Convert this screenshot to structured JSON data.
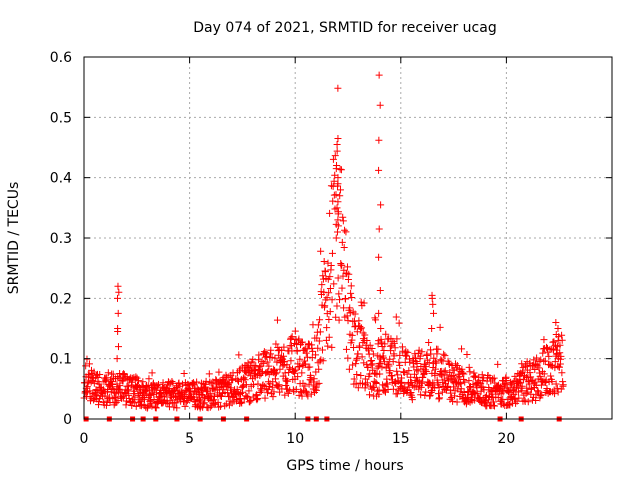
{
  "chart_data": {
    "type": "scatter",
    "title": "Day 074 of 2021, SRMTID for receiver ucag",
    "xlabel": "GPS time / hours",
    "ylabel": "SRMTID / TECUs",
    "xlim": [
      0,
      25
    ],
    "ylim": [
      0,
      0.6
    ],
    "x_ticks": [
      0,
      5,
      10,
      15,
      20
    ],
    "x_tick_labels": [
      "0",
      "5",
      "10",
      "15",
      "20"
    ],
    "y_ticks": [
      0,
      0.1,
      0.2,
      0.3,
      0.4,
      0.5,
      0.6
    ],
    "y_tick_labels": [
      "0",
      "0.1",
      "0.2",
      "0.3",
      "0.4",
      "0.5",
      "0.6"
    ],
    "grid": true,
    "marker": "plus",
    "color": "#ff0000",
    "series": [
      {
        "name": "SRMTID",
        "profile": [
          {
            "x": 0.0,
            "y": 0.07
          },
          {
            "x": 0.5,
            "y": 0.05
          },
          {
            "x": 1.0,
            "y": 0.05
          },
          {
            "x": 2.0,
            "y": 0.05
          },
          {
            "x": 3.0,
            "y": 0.04
          },
          {
            "x": 4.0,
            "y": 0.04
          },
          {
            "x": 5.0,
            "y": 0.04
          },
          {
            "x": 6.0,
            "y": 0.04
          },
          {
            "x": 7.0,
            "y": 0.05
          },
          {
            "x": 8.0,
            "y": 0.065
          },
          {
            "x": 9.0,
            "y": 0.08
          },
          {
            "x": 10.0,
            "y": 0.09
          },
          {
            "x": 10.5,
            "y": 0.08
          },
          {
            "x": 11.0,
            "y": 0.09
          },
          {
            "x": 11.5,
            "y": 0.2
          },
          {
            "x": 11.8,
            "y": 0.28
          },
          {
            "x": 12.1,
            "y": 0.3
          },
          {
            "x": 12.4,
            "y": 0.18
          },
          {
            "x": 12.8,
            "y": 0.12
          },
          {
            "x": 13.5,
            "y": 0.08
          },
          {
            "x": 14.5,
            "y": 0.09
          },
          {
            "x": 15.5,
            "y": 0.07
          },
          {
            "x": 16.5,
            "y": 0.08
          },
          {
            "x": 17.5,
            "y": 0.06
          },
          {
            "x": 18.5,
            "y": 0.05
          },
          {
            "x": 19.5,
            "y": 0.045
          },
          {
            "x": 20.5,
            "y": 0.05
          },
          {
            "x": 21.5,
            "y": 0.07
          },
          {
            "x": 22.0,
            "y": 0.08
          },
          {
            "x": 22.5,
            "y": 0.1
          },
          {
            "x": 22.7,
            "y": 0.09
          }
        ],
        "spikes": [
          {
            "x": 1.6,
            "values": [
              0.22,
              0.21,
              0.2,
              0.175,
              0.15,
              0.145,
              0.12,
              0.1
            ]
          },
          {
            "x": 12.0,
            "values": [
              0.465,
              0.455,
              0.415,
              0.4,
              0.39,
              0.36,
              0.35,
              0.34,
              0.33,
              0.32,
              0.31,
              0.3
            ]
          },
          {
            "x": 14.0,
            "values": [
              0.57,
              0.52,
              0.462,
              0.412,
              0.355,
              0.315,
              0.268,
              0.213,
              0.175,
              0.15,
              0.13
            ]
          },
          {
            "x": 16.5,
            "values": [
              0.205,
              0.2,
              0.19,
              0.175,
              0.15
            ]
          },
          {
            "x": 22.4,
            "values": [
              0.16,
              0.15,
              0.14,
              0.13,
              0.12
            ]
          }
        ]
      }
    ],
    "baseline_markers": [
      0.1,
      1.2,
      2.3,
      2.8,
      3.4,
      4.4,
      5.5,
      6.6,
      7.7,
      10.6,
      11.0,
      11.5,
      19.7,
      20.7,
      22.5
    ]
  }
}
